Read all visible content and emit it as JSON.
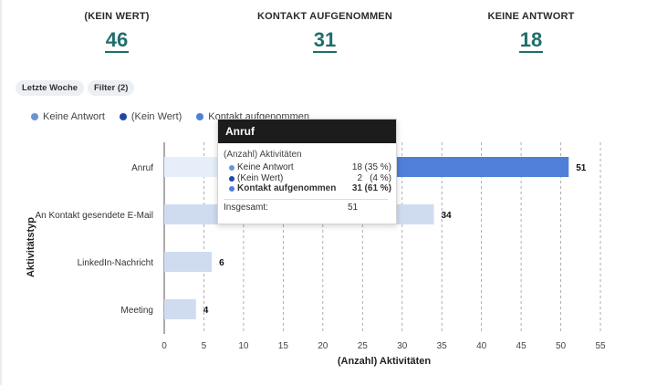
{
  "kpis": [
    {
      "label": "(KEIN WERT)",
      "value": "46"
    },
    {
      "label": "KONTAKT AUFGENOMMEN",
      "value": "31"
    },
    {
      "label": "KEINE ANTWORT",
      "value": "18"
    }
  ],
  "filters": {
    "period": "Letzte Woche",
    "filter": "Filter (2)"
  },
  "legend": [
    {
      "label": "Keine Antwort",
      "color": "#6b93d6"
    },
    {
      "label": "(Kein Wert)",
      "color": "#1f47a8"
    },
    {
      "label": "Kontakt aufgenommen",
      "color": "#4f7fd9"
    }
  ],
  "chart_data": {
    "type": "bar",
    "orientation": "horizontal",
    "categories": [
      "Anruf",
      "An Kontakt gesendete E-Mail",
      "LinkedIn-Nachricht",
      "Meeting"
    ],
    "values": [
      51,
      34,
      6,
      4
    ],
    "value_labels": [
      "51",
      "34",
      "6",
      "4"
    ],
    "xlabel": "(Anzahl) Aktivitäten",
    "ylabel": "Aktivitätstyp",
    "xlim": [
      0,
      55
    ],
    "xticks": [
      "0",
      "5",
      "10",
      "15",
      "20",
      "25",
      "30",
      "35",
      "40",
      "45",
      "50",
      "55"
    ],
    "grid": "vertical dashed",
    "highlighted": "Anruf",
    "colors": {
      "bar": "#cfdcf0",
      "highlight": "#4f7fd9"
    }
  },
  "tooltip": {
    "title": "Anruf",
    "subtitle": "(Anzahl) Aktivitäten",
    "rows": [
      {
        "label": "Keine Antwort",
        "count": "18",
        "pct": "(35 %)",
        "color": "#6b93d6",
        "bold": false
      },
      {
        "label": "(Kein Wert)",
        "count": "2",
        "pct": "(4 %)",
        "color": "#1f47a8",
        "bold": false
      },
      {
        "label": "Kontakt aufgenommen",
        "count": "31",
        "pct": "(61 %)",
        "color": "#4f7fd9",
        "bold": true
      }
    ],
    "total_label": "Insgesamt:",
    "total_value": "51"
  }
}
